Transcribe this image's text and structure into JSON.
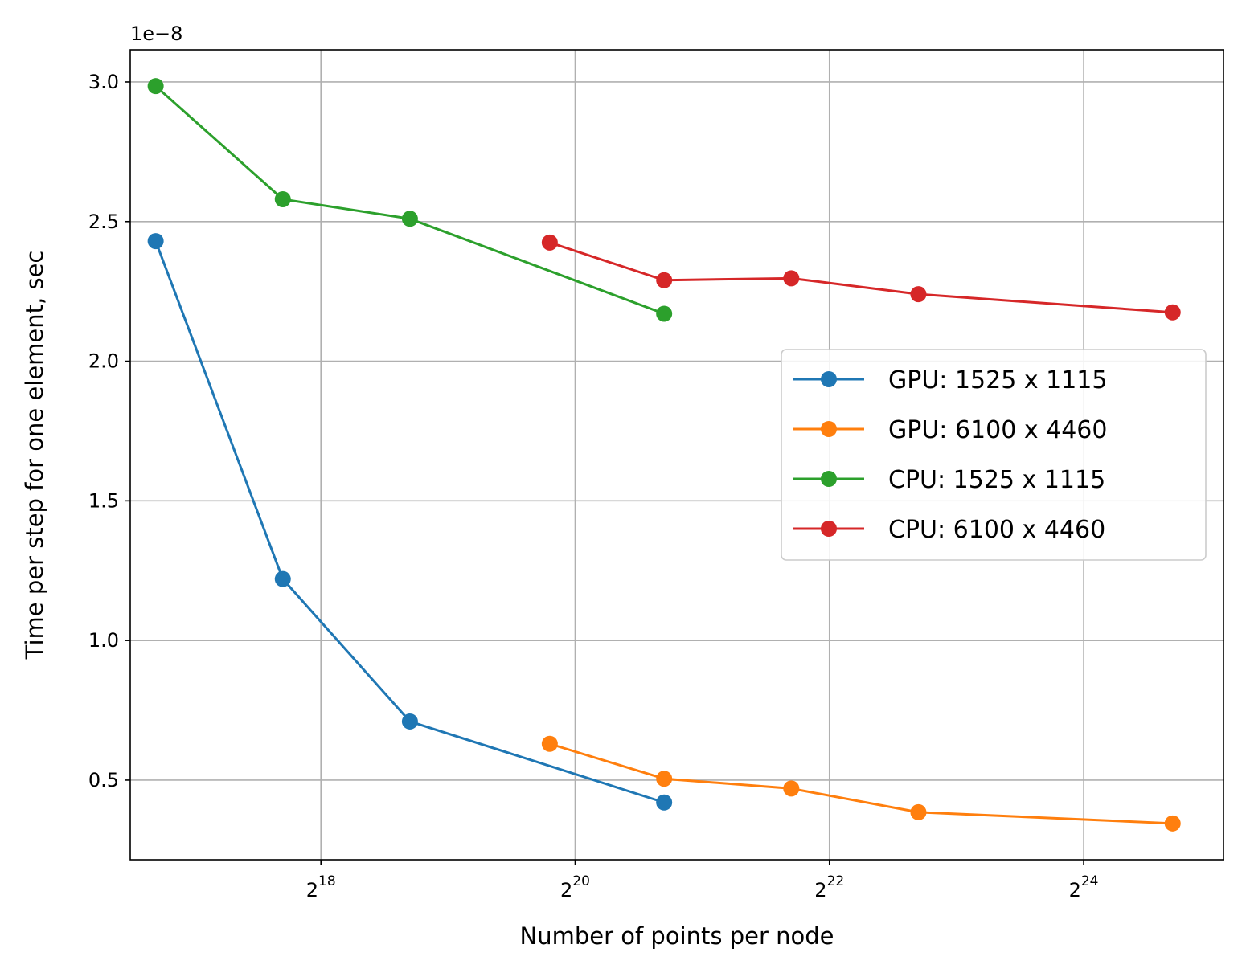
{
  "chart_data": {
    "type": "line",
    "xscale": "log2",
    "xlabel": "Number of points per node",
    "ylabel": "Time per step for one element, sec",
    "y_offset_label": "1e−8",
    "xlim_log2": [
      16.5,
      25.1
    ],
    "ylim": [
      0.215,
      3.115
    ],
    "grid": true,
    "x_ticks": [
      {
        "exp": 18,
        "base": "2",
        "sup": "18"
      },
      {
        "exp": 20,
        "base": "2",
        "sup": "20"
      },
      {
        "exp": 22,
        "base": "2",
        "sup": "22"
      },
      {
        "exp": 24,
        "base": "2",
        "sup": "24"
      }
    ],
    "y_ticks": [
      {
        "value": 0.5,
        "label": "0.5"
      },
      {
        "value": 1.0,
        "label": "1.0"
      },
      {
        "value": 1.5,
        "label": "1.5"
      },
      {
        "value": 2.0,
        "label": "2.0"
      },
      {
        "value": 2.5,
        "label": "2.5"
      },
      {
        "value": 3.0,
        "label": "3.0"
      }
    ],
    "legend_position": "center-right",
    "series": [
      {
        "name": "GPU: 1525 x 1115",
        "color": "#1f77b4",
        "x_log2": [
          16.7,
          17.7,
          18.7,
          20.7
        ],
        "values": [
          2.43,
          1.22,
          0.71,
          0.42
        ]
      },
      {
        "name": "GPU: 6100 x 4460",
        "color": "#ff7f0e",
        "x_log2": [
          19.8,
          20.7,
          21.7,
          22.7,
          24.7
        ],
        "values": [
          0.63,
          0.505,
          0.47,
          0.385,
          0.345
        ]
      },
      {
        "name": "CPU: 1525 x 1115",
        "color": "#2ca02c",
        "x_log2": [
          16.7,
          17.7,
          18.7,
          20.7
        ],
        "values": [
          2.985,
          2.58,
          2.51,
          2.17
        ]
      },
      {
        "name": "CPU: 6100 x 4460",
        "color": "#d62728",
        "x_log2": [
          19.8,
          20.7,
          21.7,
          22.7,
          24.7
        ],
        "values": [
          2.425,
          2.29,
          2.297,
          2.24,
          2.175
        ]
      }
    ]
  }
}
